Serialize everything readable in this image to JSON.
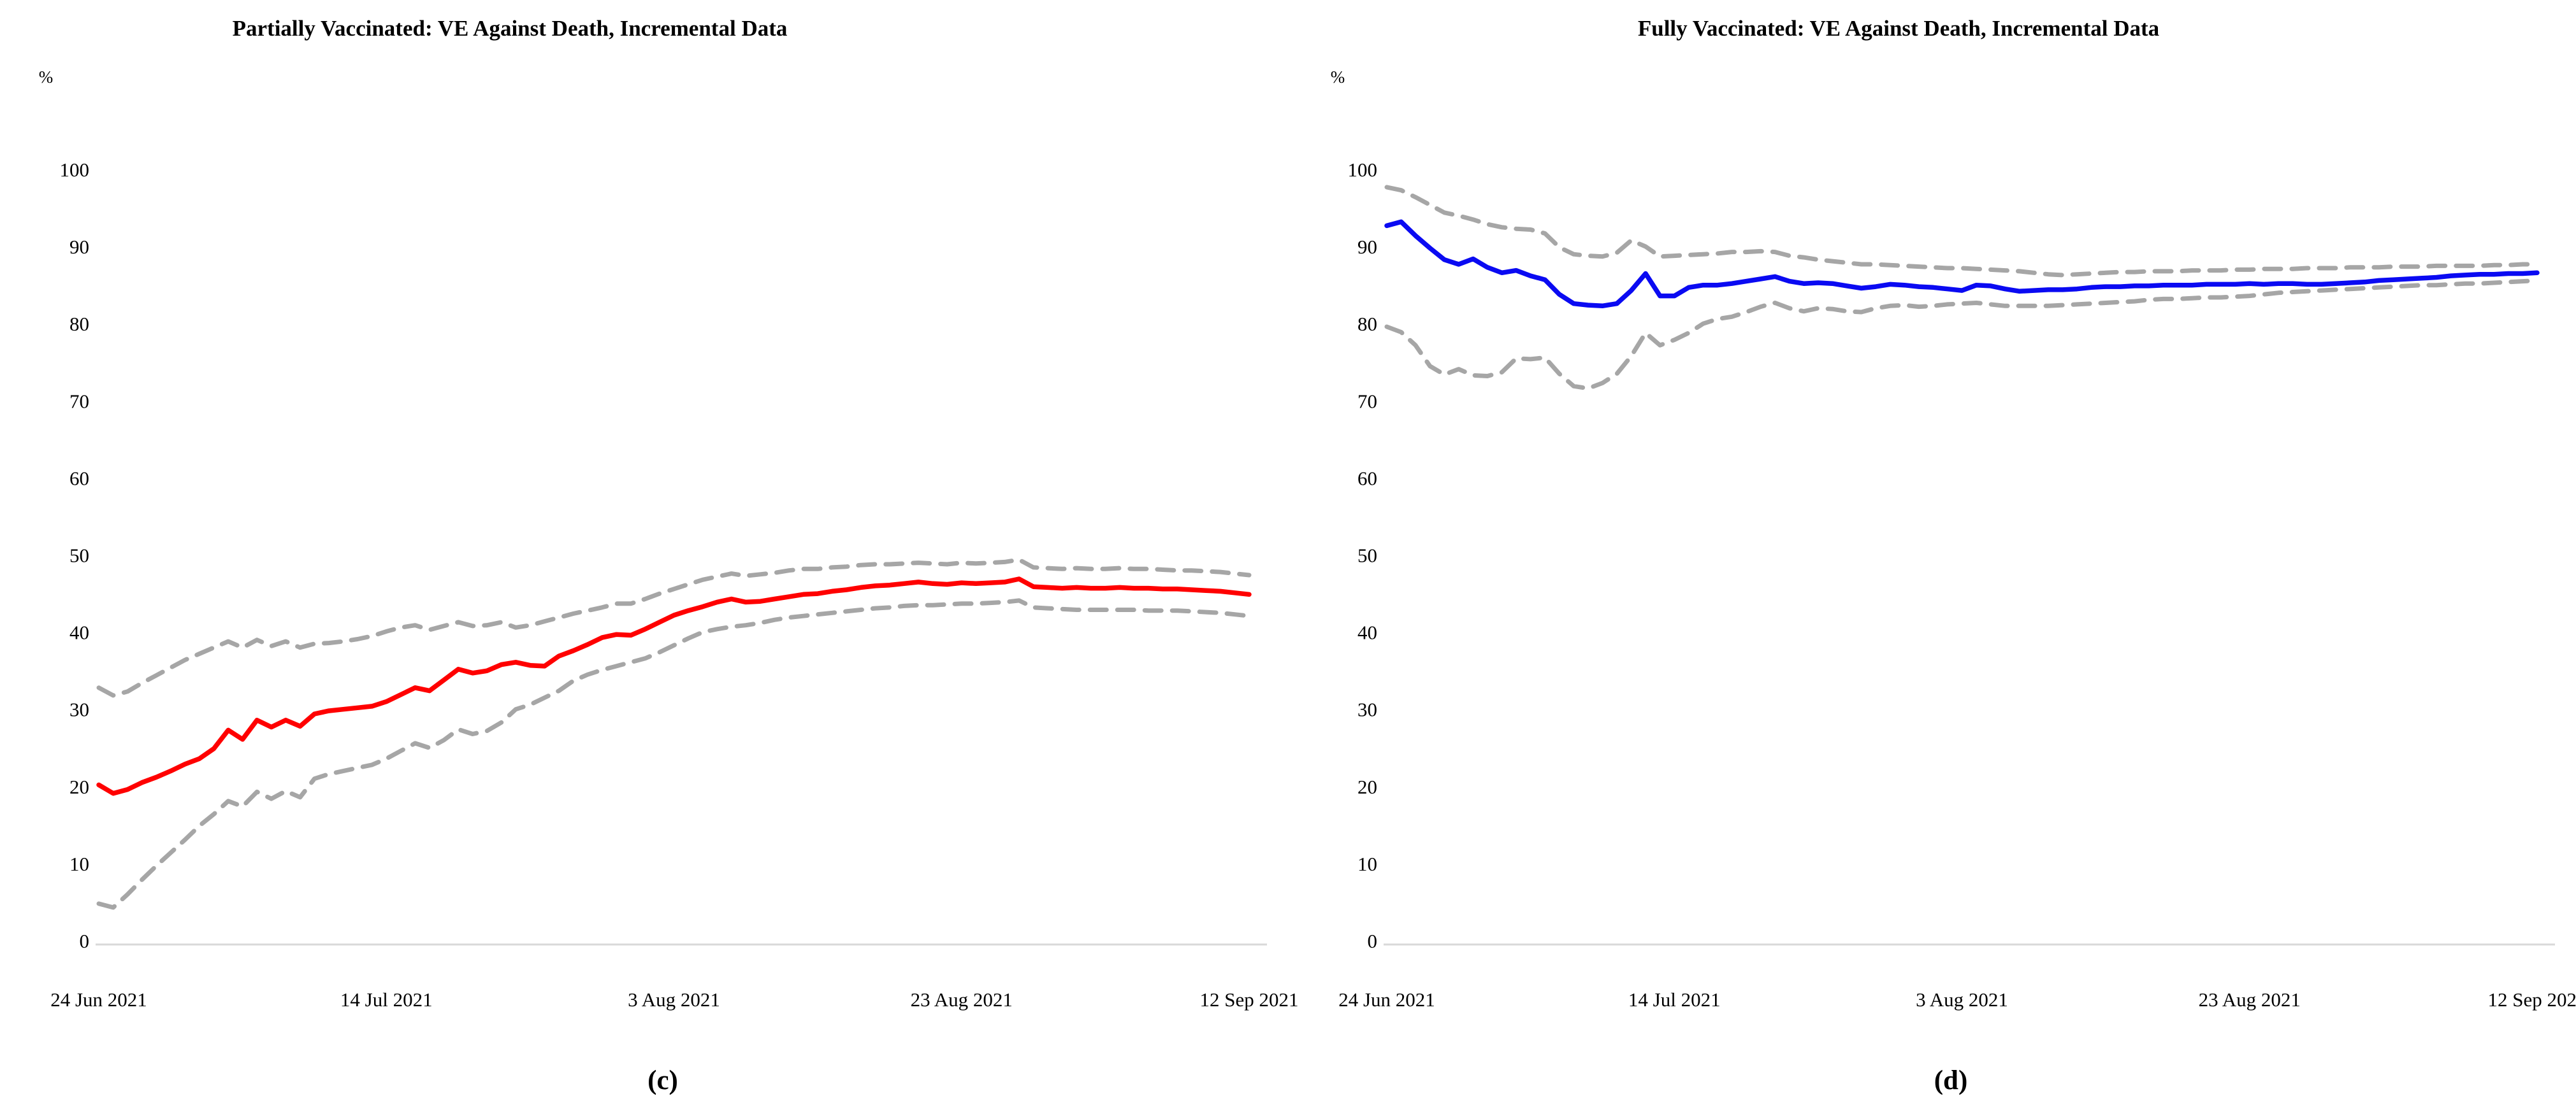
{
  "chart_data": [
    {
      "type": "line",
      "title": "Partially Vaccinated: VE Against Death, Incremental Data",
      "panel_label": "(c)",
      "ylabel": "%",
      "ylim": [
        0,
        100
      ],
      "yticks": [
        0,
        10,
        20,
        30,
        40,
        50,
        60,
        70,
        80,
        90,
        100
      ],
      "x_tick_labels": [
        "24 Jun 2021",
        "14 Jul 2021",
        "3 Aug 2021",
        "23 Aug 2021",
        "12 Sep 2021"
      ],
      "x_range_days": 80,
      "grid": "off",
      "legend": "none",
      "main_color": "#ff0000",
      "band_color": "#a6a6a6",
      "series": [
        {
          "name": "VE estimate",
          "style": "solid",
          "values": [
            20.2,
            19.1,
            19.6,
            20.5,
            21.2,
            22.0,
            22.9,
            23.6,
            24.9,
            27.3,
            26.1,
            28.6,
            27.7,
            28.6,
            27.8,
            29.4,
            29.8,
            30.0,
            30.2,
            30.4,
            31.0,
            31.9,
            32.8,
            32.4,
            33.8,
            35.2,
            34.7,
            35.0,
            35.8,
            36.1,
            35.7,
            35.6,
            36.9,
            37.6,
            38.4,
            39.3,
            39.7,
            39.6,
            40.4,
            41.3,
            42.2,
            42.8,
            43.3,
            43.9,
            44.3,
            43.9,
            44.0,
            44.3,
            44.6,
            44.9,
            45.0,
            45.3,
            45.5,
            45.8,
            46.0,
            46.1,
            46.3,
            46.5,
            46.3,
            46.2,
            46.4,
            46.3,
            46.4,
            46.5,
            46.9,
            45.9,
            45.8,
            45.7,
            45.8,
            45.7,
            45.7,
            45.8,
            45.7,
            45.7,
            45.6,
            45.6,
            45.5,
            45.4,
            45.3,
            45.1,
            44.9
          ]
        },
        {
          "name": "Upper 95% CI",
          "style": "dashed",
          "values": [
            32.8,
            31.8,
            32.3,
            33.4,
            34.4,
            35.4,
            36.4,
            37.2,
            38.0,
            38.8,
            38.0,
            39.0,
            38.2,
            38.8,
            38.0,
            38.5,
            38.6,
            38.8,
            39.1,
            39.5,
            40.1,
            40.6,
            40.9,
            40.3,
            40.8,
            41.3,
            40.8,
            40.9,
            41.3,
            40.6,
            40.9,
            41.4,
            41.9,
            42.4,
            42.8,
            43.2,
            43.7,
            43.7,
            44.3,
            45.0,
            45.6,
            46.2,
            46.8,
            47.2,
            47.6,
            47.3,
            47.5,
            47.7,
            48.0,
            48.2,
            48.2,
            48.4,
            48.5,
            48.7,
            48.8,
            48.8,
            48.9,
            49.0,
            48.9,
            48.8,
            49.0,
            48.9,
            49.0,
            49.1,
            49.4,
            48.4,
            48.3,
            48.2,
            48.3,
            48.2,
            48.2,
            48.3,
            48.2,
            48.2,
            48.1,
            48.0,
            48.0,
            47.9,
            47.8,
            47.6,
            47.4
          ]
        },
        {
          "name": "Lower 95% CI",
          "style": "dashed",
          "values": [
            4.8,
            4.3,
            6.0,
            7.9,
            9.7,
            11.4,
            13.1,
            14.9,
            16.4,
            18.1,
            17.4,
            19.3,
            18.4,
            19.4,
            18.6,
            21.0,
            21.6,
            22.0,
            22.4,
            22.8,
            23.6,
            24.6,
            25.6,
            25.0,
            26.0,
            27.4,
            26.8,
            27.2,
            28.3,
            30.0,
            30.6,
            31.5,
            32.4,
            33.7,
            34.5,
            35.1,
            35.6,
            36.1,
            36.6,
            37.4,
            38.3,
            39.2,
            40.0,
            40.4,
            40.7,
            40.9,
            41.2,
            41.6,
            41.9,
            42.1,
            42.3,
            42.5,
            42.7,
            42.9,
            43.1,
            43.2,
            43.4,
            43.5,
            43.5,
            43.6,
            43.7,
            43.7,
            43.8,
            43.9,
            44.1,
            43.2,
            43.1,
            43.0,
            42.9,
            42.9,
            42.9,
            42.9,
            42.9,
            42.8,
            42.8,
            42.8,
            42.7,
            42.6,
            42.5,
            42.3,
            42.1
          ]
        }
      ]
    },
    {
      "type": "line",
      "title": "Fully Vaccinated: VE Against Death, Incremental Data",
      "panel_label": "(d)",
      "ylabel": "%",
      "ylim": [
        0,
        100
      ],
      "yticks": [
        0,
        10,
        20,
        30,
        40,
        50,
        60,
        70,
        80,
        90,
        100
      ],
      "x_tick_labels": [
        "24 Jun 2021",
        "14 Jul 2021",
        "3 Aug 2021",
        "23 Aug 2021",
        "12 Sep 2021"
      ],
      "x_range_days": 80,
      "grid": "off",
      "legend": "none",
      "main_color": "#0a0af2",
      "band_color": "#a6a6a6",
      "series": [
        {
          "name": "VE estimate",
          "style": "solid",
          "values": [
            92.7,
            93.2,
            91.4,
            89.8,
            88.3,
            87.7,
            88.4,
            87.3,
            86.6,
            86.9,
            86.2,
            85.7,
            83.8,
            82.6,
            82.4,
            82.3,
            82.6,
            84.3,
            86.5,
            83.6,
            83.6,
            84.7,
            85.0,
            85.0,
            85.2,
            85.5,
            85.8,
            86.1,
            85.5,
            85.2,
            85.3,
            85.2,
            84.9,
            84.6,
            84.8,
            85.1,
            85.0,
            84.8,
            84.7,
            84.5,
            84.3,
            85.0,
            84.9,
            84.5,
            84.2,
            84.3,
            84.4,
            84.4,
            84.5,
            84.7,
            84.8,
            84.8,
            84.9,
            84.9,
            85.0,
            85.0,
            85.0,
            85.1,
            85.1,
            85.1,
            85.2,
            85.1,
            85.2,
            85.2,
            85.1,
            85.1,
            85.2,
            85.3,
            85.4,
            85.6,
            85.7,
            85.8,
            85.9,
            86.0,
            86.2,
            86.3,
            86.4,
            86.4,
            86.5,
            86.5,
            86.6
          ]
        },
        {
          "name": "Upper 95% CI",
          "style": "dashed",
          "values": [
            97.7,
            97.3,
            96.4,
            95.4,
            94.4,
            94.0,
            93.5,
            92.9,
            92.5,
            92.3,
            92.2,
            91.7,
            89.9,
            89.0,
            88.8,
            88.7,
            89.2,
            90.8,
            90.0,
            88.7,
            88.8,
            88.9,
            89.0,
            89.1,
            89.3,
            89.3,
            89.4,
            89.3,
            88.8,
            88.6,
            88.3,
            88.1,
            87.9,
            87.7,
            87.7,
            87.6,
            87.5,
            87.4,
            87.3,
            87.2,
            87.2,
            87.1,
            87.0,
            86.9,
            86.8,
            86.6,
            86.4,
            86.3,
            86.4,
            86.5,
            86.6,
            86.7,
            86.7,
            86.8,
            86.8,
            86.8,
            86.9,
            86.9,
            86.9,
            87.0,
            87.0,
            87.1,
            87.1,
            87.1,
            87.2,
            87.2,
            87.2,
            87.3,
            87.3,
            87.3,
            87.4,
            87.4,
            87.4,
            87.5,
            87.5,
            87.5,
            87.5,
            87.6,
            87.6,
            87.7,
            87.7
          ]
        },
        {
          "name": "Lower 95% CI",
          "style": "dashed",
          "values": [
            79.6,
            78.9,
            77.2,
            74.5,
            73.4,
            74.1,
            73.3,
            73.2,
            73.7,
            75.5,
            75.4,
            75.6,
            73.5,
            71.9,
            71.6,
            72.3,
            73.5,
            75.8,
            78.8,
            77.2,
            77.9,
            78.8,
            80.0,
            80.6,
            80.9,
            81.5,
            82.2,
            82.7,
            82.0,
            81.6,
            82.0,
            81.9,
            81.6,
            81.5,
            82.0,
            82.3,
            82.4,
            82.2,
            82.3,
            82.5,
            82.6,
            82.7,
            82.5,
            82.3,
            82.3,
            82.3,
            82.3,
            82.4,
            82.5,
            82.6,
            82.7,
            82.8,
            82.9,
            83.1,
            83.2,
            83.2,
            83.3,
            83.4,
            83.4,
            83.5,
            83.6,
            83.8,
            84.0,
            84.1,
            84.2,
            84.3,
            84.4,
            84.5,
            84.6,
            84.7,
            84.8,
            84.9,
            85.0,
            85.0,
            85.1,
            85.2,
            85.2,
            85.3,
            85.4,
            85.5,
            85.6
          ]
        }
      ]
    }
  ]
}
